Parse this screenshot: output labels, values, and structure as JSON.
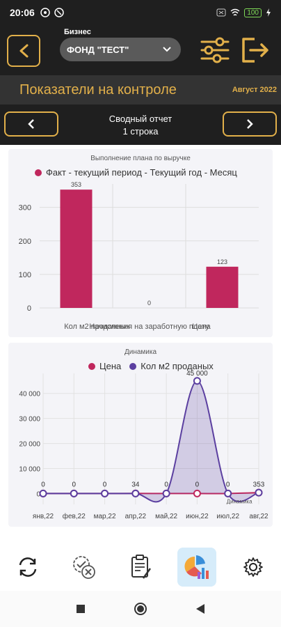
{
  "status": {
    "time": "20:06",
    "battery": "100"
  },
  "header": {
    "business_label": "Бизнес",
    "business_value": "ФОНД \"ТЕСТ\""
  },
  "title": {
    "text": "Показатели на контроле",
    "period": "Август 2022"
  },
  "report_nav": {
    "line1": "Сводный отчет",
    "line2": "1 строка"
  },
  "chart_data": [
    {
      "type": "bar",
      "title": "Выполнение плана по выручке",
      "series": [
        {
          "name": "Факт - текущий период  - Текущий год - Месяц",
          "color": "#c0275d",
          "values": [
            353,
            0,
            123
          ]
        }
      ],
      "categories": [
        "Кол м2 проданных",
        "Начисления на заработную плату",
        "Цена"
      ],
      "xlabels": [
        "Кол м2 проданных",
        "Начисления на заработную плату",
        "Цена"
      ],
      "ylim": [
        0,
        370
      ],
      "yticks": [
        0,
        100,
        200,
        300
      ],
      "data_labels": [
        "353",
        "0",
        "123"
      ]
    },
    {
      "type": "area",
      "title": "Динамика",
      "series": [
        {
          "name": "Цена",
          "color": "#c0275d",
          "values": [
            0,
            0,
            0,
            34,
            0,
            0,
            0,
            353
          ]
        },
        {
          "name": "Кол м2 проданых",
          "color": "#5b3fa0",
          "values": [
            0,
            0,
            0,
            0,
            0,
            45000,
            0,
            353
          ]
        }
      ],
      "categories": [
        "янв,22",
        "фев,22",
        "мар,22",
        "апр,22",
        "май,22",
        "июн,22",
        "июл,22",
        "авг,22"
      ],
      "ylim": [
        -1000,
        48000
      ],
      "yticks": [
        0,
        10000,
        20000,
        30000,
        40000
      ],
      "ytick_labels": [
        "0",
        "10 000",
        "20 000",
        "30 000",
        "40 000"
      ],
      "data_labels": [
        "0",
        "0",
        "0",
        "34",
        "0",
        "0",
        "0",
        "353"
      ],
      "peak_label": "45 000",
      "inner_label": "Динамика"
    }
  ],
  "bottom_tabs": [
    {
      "name": "refresh"
    },
    {
      "name": "approvals"
    },
    {
      "name": "reports"
    },
    {
      "name": "analytics",
      "active": true
    },
    {
      "name": "settings"
    }
  ]
}
